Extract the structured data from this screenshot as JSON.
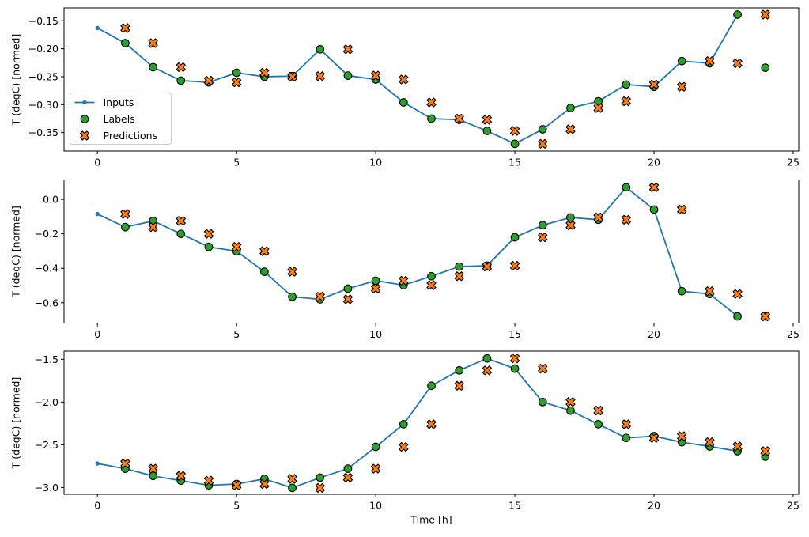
{
  "figure": {
    "xlabel": "Time [h]",
    "ylabel": "T (degC) [normed]",
    "background": "#ffffff",
    "colors": {
      "inputs_line": "#1f77b4",
      "labels_marker": "#2ca02c",
      "predictions_marker": "#ff7f0e",
      "marker_edge": "#000000",
      "spine": "#000000",
      "legend_border": "#cccccc",
      "legend_bg": "rgba(255,255,255,0.85)"
    },
    "legend": {
      "entries": [
        {
          "label": "Inputs",
          "marker": "line-dot",
          "color": "#1f77b4"
        },
        {
          "label": "Labels",
          "marker": "circle",
          "color": "#2ca02c"
        },
        {
          "label": "Predictions",
          "marker": "X",
          "color": "#ff7f0e"
        }
      ]
    }
  },
  "chart_data": [
    {
      "type": "line",
      "ylabel": "T (degC) [normed]",
      "xlim": [
        -1.2,
        25.2
      ],
      "ylim": [
        -0.383,
        -0.127
      ],
      "xticks": [
        0,
        5,
        10,
        15,
        20,
        25
      ],
      "xtick_labels": [
        "0",
        "5",
        "10",
        "15",
        "20",
        "25"
      ],
      "yticks": [
        -0.15,
        -0.2,
        -0.25,
        -0.3,
        -0.35
      ],
      "ytick_labels": [
        "−0.15",
        "−0.20",
        "−0.25",
        "−0.30",
        "−0.35"
      ],
      "grid": false,
      "has_legend": true,
      "series": [
        {
          "name": "Inputs",
          "kind": "line",
          "marker": "dot",
          "x": [
            0,
            1,
            2,
            3,
            4,
            5,
            6,
            7,
            8,
            9,
            10,
            11,
            12,
            13,
            14,
            15,
            16,
            17,
            18,
            19,
            20,
            21,
            22,
            23
          ],
          "y": [
            -0.163,
            -0.19,
            -0.233,
            -0.257,
            -0.26,
            -0.243,
            -0.25,
            -0.249,
            -0.201,
            -0.248,
            -0.255,
            -0.296,
            -0.325,
            -0.327,
            -0.347,
            -0.37,
            -0.344,
            -0.306,
            -0.294,
            -0.264,
            -0.268,
            -0.222,
            -0.226,
            -0.139
          ]
        },
        {
          "name": "Labels",
          "kind": "scatter",
          "marker": "circle",
          "x": [
            1,
            2,
            3,
            4,
            5,
            6,
            7,
            8,
            9,
            10,
            11,
            12,
            13,
            14,
            15,
            16,
            17,
            18,
            19,
            20,
            21,
            22,
            23,
            24
          ],
          "y": [
            -0.19,
            -0.233,
            -0.257,
            -0.26,
            -0.243,
            -0.25,
            -0.249,
            -0.201,
            -0.248,
            -0.255,
            -0.296,
            -0.325,
            -0.327,
            -0.347,
            -0.37,
            -0.344,
            -0.306,
            -0.294,
            -0.264,
            -0.268,
            -0.222,
            -0.226,
            -0.139,
            -0.234
          ]
        },
        {
          "name": "Predictions",
          "kind": "scatter",
          "marker": "X",
          "x": [
            1,
            2,
            3,
            4,
            5,
            6,
            7,
            8,
            9,
            10,
            11,
            12,
            13,
            14,
            15,
            16,
            17,
            18,
            19,
            20,
            21,
            22,
            23,
            24
          ],
          "y": [
            -0.163,
            -0.19,
            -0.233,
            -0.257,
            -0.26,
            -0.243,
            -0.25,
            -0.249,
            -0.201,
            -0.248,
            -0.255,
            -0.296,
            -0.325,
            -0.327,
            -0.347,
            -0.37,
            -0.344,
            -0.306,
            -0.294,
            -0.264,
            -0.268,
            -0.222,
            -0.226,
            -0.139
          ]
        }
      ]
    },
    {
      "type": "line",
      "ylabel": "T (degC) [normed]",
      "xlim": [
        -1.2,
        25.2
      ],
      "ylim": [
        -0.718,
        0.113
      ],
      "xticks": [
        0,
        5,
        10,
        15,
        20,
        25
      ],
      "xtick_labels": [
        "0",
        "5",
        "10",
        "15",
        "20",
        "25"
      ],
      "yticks": [
        0.0,
        -0.2,
        -0.4,
        -0.6
      ],
      "ytick_labels": [
        "0.0",
        "−0.2",
        "−0.4",
        "−0.6"
      ],
      "grid": false,
      "has_legend": false,
      "series": [
        {
          "name": "Inputs",
          "kind": "line",
          "marker": "dot",
          "x": [
            0,
            1,
            2,
            3,
            4,
            5,
            6,
            7,
            8,
            9,
            10,
            11,
            12,
            13,
            14,
            15,
            16,
            17,
            18,
            19,
            20,
            21,
            22,
            23
          ],
          "y": [
            -0.085,
            -0.161,
            -0.125,
            -0.2,
            -0.276,
            -0.301,
            -0.42,
            -0.565,
            -0.58,
            -0.518,
            -0.472,
            -0.498,
            -0.446,
            -0.39,
            -0.385,
            -0.22,
            -0.15,
            -0.105,
            -0.118,
            0.07,
            -0.059,
            -0.533,
            -0.549,
            -0.679
          ]
        },
        {
          "name": "Labels",
          "kind": "scatter",
          "marker": "circle",
          "x": [
            1,
            2,
            3,
            4,
            5,
            6,
            7,
            8,
            9,
            10,
            11,
            12,
            13,
            14,
            15,
            16,
            17,
            18,
            19,
            20,
            21,
            22,
            23,
            24
          ],
          "y": [
            -0.161,
            -0.125,
            -0.2,
            -0.276,
            -0.301,
            -0.42,
            -0.565,
            -0.58,
            -0.518,
            -0.472,
            -0.498,
            -0.446,
            -0.39,
            -0.385,
            -0.22,
            -0.15,
            -0.105,
            -0.118,
            0.07,
            -0.059,
            -0.533,
            -0.549,
            -0.679,
            -0.679
          ]
        },
        {
          "name": "Predictions",
          "kind": "scatter",
          "marker": "X",
          "x": [
            1,
            2,
            3,
            4,
            5,
            6,
            7,
            8,
            9,
            10,
            11,
            12,
            13,
            14,
            15,
            16,
            17,
            18,
            19,
            20,
            21,
            22,
            23,
            24
          ],
          "y": [
            -0.085,
            -0.161,
            -0.125,
            -0.2,
            -0.276,
            -0.301,
            -0.42,
            -0.565,
            -0.58,
            -0.518,
            -0.472,
            -0.498,
            -0.446,
            -0.39,
            -0.385,
            -0.22,
            -0.15,
            -0.105,
            -0.118,
            0.07,
            -0.059,
            -0.533,
            -0.549,
            -0.679
          ]
        }
      ]
    },
    {
      "type": "line",
      "ylabel": "T (degC) [normed]",
      "xlabel": "Time [h]",
      "xlim": [
        -1.2,
        25.2
      ],
      "ylim": [
        -3.08,
        -1.405
      ],
      "xticks": [
        0,
        5,
        10,
        15,
        20,
        25
      ],
      "xtick_labels": [
        "0",
        "5",
        "10",
        "15",
        "20",
        "25"
      ],
      "yticks": [
        -1.5,
        -2.0,
        -2.5,
        -3.0
      ],
      "ytick_labels": [
        "−1.5",
        "−2.0",
        "−2.5",
        "−3.0"
      ],
      "grid": false,
      "has_legend": false,
      "series": [
        {
          "name": "Inputs",
          "kind": "line",
          "marker": "dot",
          "x": [
            0,
            1,
            2,
            3,
            4,
            5,
            6,
            7,
            8,
            9,
            10,
            11,
            12,
            13,
            14,
            15,
            16,
            17,
            18,
            19,
            20,
            21,
            22,
            23
          ],
          "y": [
            -2.72,
            -2.78,
            -2.865,
            -2.92,
            -2.975,
            -2.96,
            -2.9,
            -3.005,
            -2.885,
            -2.78,
            -2.525,
            -2.26,
            -1.81,
            -1.63,
            -1.49,
            -1.61,
            -2.0,
            -2.1,
            -2.26,
            -2.42,
            -2.4,
            -2.47,
            -2.52,
            -2.575
          ]
        },
        {
          "name": "Labels",
          "kind": "scatter",
          "marker": "circle",
          "x": [
            1,
            2,
            3,
            4,
            5,
            6,
            7,
            8,
            9,
            10,
            11,
            12,
            13,
            14,
            15,
            16,
            17,
            18,
            19,
            20,
            21,
            22,
            23,
            24
          ],
          "y": [
            -2.78,
            -2.865,
            -2.92,
            -2.975,
            -2.96,
            -2.9,
            -3.005,
            -2.885,
            -2.78,
            -2.525,
            -2.26,
            -1.81,
            -1.63,
            -1.49,
            -1.61,
            -2.0,
            -2.1,
            -2.26,
            -2.42,
            -2.4,
            -2.47,
            -2.52,
            -2.575,
            -2.64
          ]
        },
        {
          "name": "Predictions",
          "kind": "scatter",
          "marker": "X",
          "x": [
            1,
            2,
            3,
            4,
            5,
            6,
            7,
            8,
            9,
            10,
            11,
            12,
            13,
            14,
            15,
            16,
            17,
            18,
            19,
            20,
            21,
            22,
            23,
            24
          ],
          "y": [
            -2.72,
            -2.78,
            -2.865,
            -2.92,
            -2.975,
            -2.96,
            -2.9,
            -3.005,
            -2.885,
            -2.78,
            -2.525,
            -2.26,
            -1.81,
            -1.63,
            -1.49,
            -1.61,
            -2.0,
            -2.1,
            -2.26,
            -2.42,
            -2.4,
            -2.47,
            -2.52,
            -2.575
          ]
        }
      ]
    }
  ]
}
